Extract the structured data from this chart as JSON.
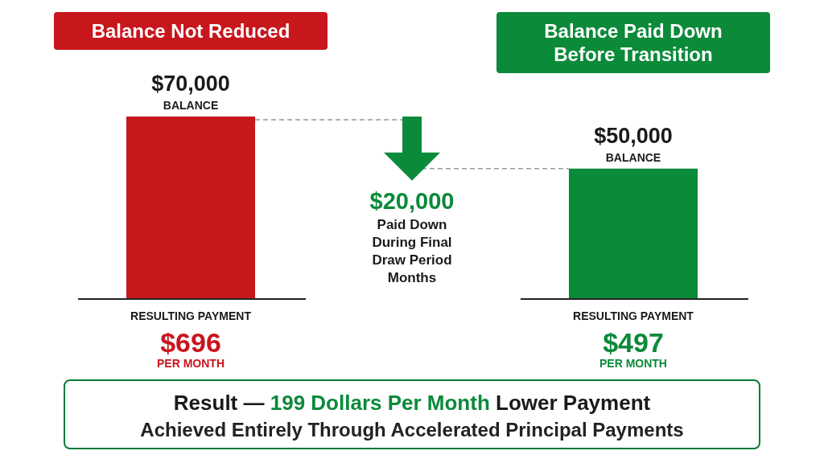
{
  "chart_data": {
    "type": "bar",
    "categories": [
      "Balance Not Reduced",
      "Balance Paid Down Before Transition"
    ],
    "values": [
      70000,
      50000
    ],
    "colors": [
      "#c8161d",
      "#0b8a3a"
    ],
    "value_labels": [
      "$70,000",
      "$50,000"
    ],
    "annotations": [
      "BALANCE",
      "BALANCE",
      "$20,000",
      "Paid Down During Final Draw Period Months",
      "RESULTING PAYMENT",
      "$696",
      "PER MONTH",
      "RESULTING PAYMENT",
      "$497",
      "PER MONTH",
      "Result —",
      "199 Dollars Per Month",
      "Lower Payment",
      "Achieved Entirely Through Accelerated Principal Payments"
    ]
  }
}
